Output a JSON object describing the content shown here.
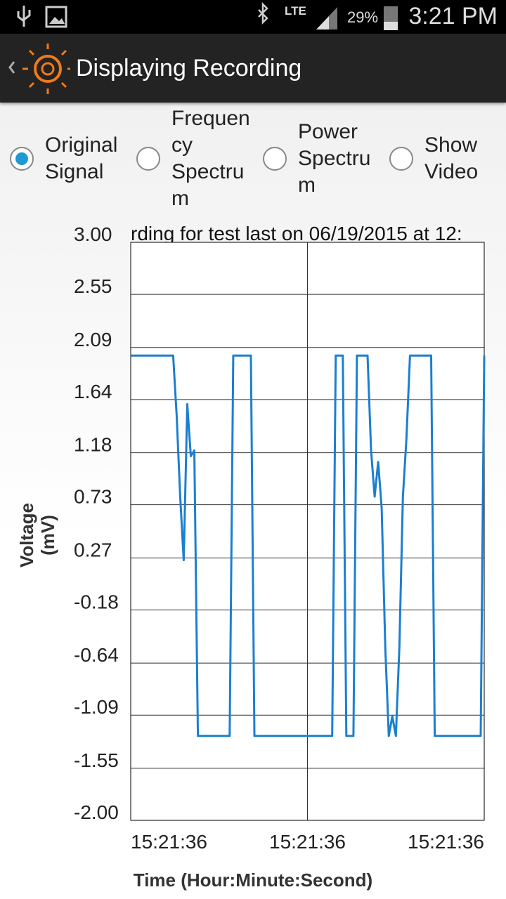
{
  "status_bar": {
    "network": "LTE",
    "battery": "29%",
    "time": "3:21 PM"
  },
  "action_bar": {
    "title": "Displaying Recording"
  },
  "radio_options": [
    {
      "label": "Original Signal",
      "selected": true
    },
    {
      "label": "Frequency Spectrum",
      "selected": false
    },
    {
      "label": "Power Spectrum",
      "selected": false
    },
    {
      "label": "Show Video",
      "selected": false
    }
  ],
  "chart_data": {
    "type": "line",
    "title": "rding for test last on 06/19/2015 at 12:",
    "x_label": "Time (Hour:Minute:Second)",
    "y_label": [
      "Voltage",
      "(mV)"
    ],
    "color": "#1b7fd1",
    "xlim": [
      0,
      100
    ],
    "xticks": [
      {
        "value": 0,
        "label": "15:21:36"
      },
      {
        "value": 50,
        "label": "15:21:36"
      },
      {
        "value": 100,
        "label": "15:21:36"
      }
    ],
    "ylim": [
      -2,
      3
    ],
    "yticks": [
      {
        "value": 3,
        "label": "3.00"
      },
      2.55,
      2.09,
      1.64,
      1.18,
      0.73,
      0.27,
      -0.18,
      -0.64,
      -1.09,
      -1.55,
      {
        "value": -2,
        "label": "-2.00"
      }
    ],
    "grid": true,
    "values": [
      2.02,
      2.02,
      2.02,
      2.02,
      2.02,
      2.02,
      2.02,
      2.02,
      2.02,
      2.02,
      2.02,
      2.02,
      2.02,
      1.5,
      0.8,
      0.25,
      1.6,
      1.15,
      1.2,
      -1.27,
      -1.27,
      -1.27,
      -1.27,
      -1.27,
      -1.27,
      -1.27,
      -1.27,
      -1.27,
      -1.27,
      2.02,
      2.02,
      2.02,
      2.02,
      2.02,
      2.02,
      -1.27,
      -1.27,
      -1.27,
      -1.27,
      -1.27,
      -1.27,
      -1.27,
      -1.27,
      -1.27,
      -1.27,
      -1.27,
      -1.27,
      -1.27,
      -1.27,
      -1.27,
      -1.27,
      -1.27,
      -1.27,
      -1.27,
      -1.27,
      -1.27,
      -1.27,
      -1.27,
      2.02,
      2.02,
      2.02,
      -1.27,
      -1.27,
      -1.27,
      2.02,
      2.02,
      2.02,
      2.02,
      1.2,
      0.8,
      1.1,
      0.7,
      -0.5,
      -1.27,
      -1.1,
      -1.27,
      -0.5,
      0.8,
      1.3,
      2.02,
      2.02,
      2.02,
      2.02,
      2.02,
      2.02,
      2.02,
      -1.27,
      -1.27,
      -1.27,
      -1.27,
      -1.27,
      -1.27,
      -1.27,
      -1.27,
      -1.27,
      -1.27,
      -1.27,
      -1.27,
      -1.27,
      -1.27,
      2.02
    ]
  }
}
